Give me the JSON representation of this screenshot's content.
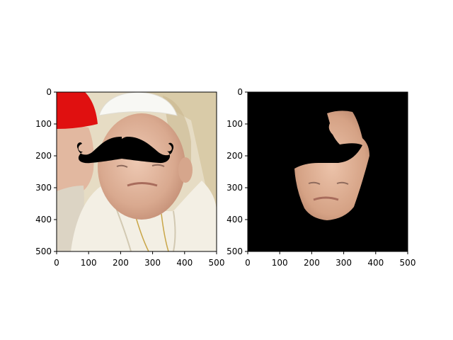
{
  "figure": {
    "panels": [
      {
        "id": "left",
        "image": "photo-with-mustache-overlay",
        "x_ticks": [
          "0",
          "100",
          "200",
          "300",
          "400",
          "500"
        ],
        "y_ticks": [
          "0",
          "100",
          "200",
          "300",
          "400",
          "500"
        ]
      },
      {
        "id": "right",
        "image": "segmented-face-on-black",
        "x_ticks": [
          "0",
          "100",
          "200",
          "300",
          "400",
          "500"
        ],
        "y_ticks": [
          "0",
          "100",
          "200",
          "300",
          "400",
          "500"
        ]
      }
    ]
  },
  "colors": {
    "background": "#ffffff",
    "cap_red": "#e01010",
    "cap_white": "#f8f8f4",
    "robe": "#f1ede0",
    "wall": "#e6dcc4",
    "skin": "#e2b8a0",
    "mustache": "#000000",
    "mask_bg": "#000000"
  }
}
